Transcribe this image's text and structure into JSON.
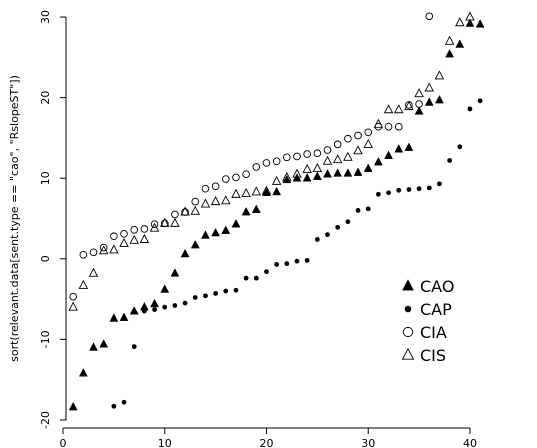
{
  "chart_data": {
    "type": "scatter",
    "title": "",
    "xlabel": "",
    "ylabel": "sort(relevant.data[sent.type == \"cao\", \"RslopeST\"])",
    "xlim": [
      0,
      46
    ],
    "ylim": [
      -21,
      31
    ],
    "xticks": [
      0,
      10,
      20,
      30,
      40
    ],
    "yticks": [
      -20,
      -10,
      0,
      10,
      20,
      30
    ],
    "grid": false,
    "legend_position": "lower-right",
    "series": [
      {
        "name": "CAO",
        "marker": "filled-triangle",
        "x": [
          1,
          2,
          3,
          4,
          5,
          6,
          7,
          8,
          9,
          10,
          11,
          12,
          13,
          14,
          15,
          16,
          17,
          18,
          19,
          20,
          21,
          22,
          23,
          24,
          25,
          26,
          27,
          28,
          29,
          30,
          31,
          32,
          33,
          34,
          35,
          36,
          37,
          38,
          39,
          40,
          41
        ],
        "y": [
          -18.4,
          -14.2,
          -11.0,
          -10.6,
          -7.4,
          -7.3,
          -6.5,
          -6.0,
          -5.6,
          -3.8,
          -1.8,
          0.6,
          1.7,
          2.9,
          3.2,
          3.5,
          4.3,
          5.8,
          6.1,
          8.2,
          8.3,
          9.8,
          10.0,
          10.0,
          10.2,
          10.5,
          10.6,
          10.6,
          10.7,
          11.2,
          12.0,
          12.8,
          13.6,
          13.8,
          18.3,
          19.4,
          19.7,
          25.4,
          26.6,
          29.2,
          29.1
        ]
      },
      {
        "name": "CAP",
        "marker": "filled-circle",
        "x": [
          5,
          6,
          7,
          8,
          9,
          10,
          11,
          12,
          13,
          14,
          15,
          16,
          17,
          18,
          19,
          20,
          21,
          22,
          23,
          24,
          25,
          26,
          27,
          28,
          29,
          30,
          31,
          32,
          33,
          34,
          35,
          36,
          37,
          38,
          39,
          40,
          41
        ],
        "y": [
          -18.3,
          -17.8,
          -10.9,
          -6.5,
          -6.3,
          -6.0,
          -5.8,
          -5.5,
          -4.8,
          -4.6,
          -4.3,
          -4.0,
          -3.9,
          -2.4,
          -2.4,
          -1.6,
          -0.7,
          -0.6,
          -0.3,
          -0.2,
          2.4,
          3.0,
          3.9,
          4.6,
          6.0,
          6.2,
          8.0,
          8.2,
          8.5,
          8.6,
          8.7,
          8.8,
          9.3,
          12.2,
          13.9,
          18.6,
          19.6
        ]
      },
      {
        "name": "CIA",
        "marker": "open-circle",
        "x": [
          1,
          2,
          3,
          4,
          5,
          6,
          7,
          8,
          9,
          10,
          11,
          12,
          13,
          14,
          15,
          16,
          17,
          18,
          19,
          20,
          21,
          22,
          23,
          24,
          25,
          26,
          27,
          28,
          29,
          30,
          31,
          32,
          33,
          34,
          35,
          36
        ],
        "y": [
          -4.7,
          0.5,
          0.8,
          1.4,
          2.8,
          3.1,
          3.6,
          3.7,
          4.3,
          4.4,
          5.5,
          5.8,
          7.1,
          8.7,
          9.0,
          9.9,
          10.1,
          10.5,
          11.4,
          11.9,
          12.1,
          12.6,
          12.7,
          13.0,
          13.1,
          13.5,
          14.2,
          14.9,
          15.3,
          15.7,
          16.4,
          16.4,
          16.4,
          19.1,
          19.2,
          30.1
        ]
      },
      {
        "name": "CIS",
        "marker": "open-triangle",
        "x": [
          1,
          2,
          3,
          4,
          5,
          6,
          7,
          8,
          9,
          10,
          11,
          12,
          13,
          14,
          15,
          16,
          17,
          18,
          19,
          20,
          21,
          22,
          23,
          24,
          25,
          26,
          27,
          28,
          29,
          30,
          31,
          32,
          33,
          34,
          35,
          36,
          37,
          38,
          39,
          40
        ],
        "y": [
          -6.0,
          -3.3,
          -1.8,
          1.0,
          1.1,
          1.9,
          2.3,
          2.4,
          3.8,
          4.4,
          4.4,
          5.8,
          5.9,
          6.8,
          7.1,
          7.2,
          8.0,
          8.1,
          8.3,
          8.4,
          9.6,
          10.1,
          10.5,
          11.1,
          11.2,
          12.1,
          12.3,
          12.6,
          13.4,
          14.2,
          16.7,
          18.5,
          18.5,
          18.9,
          20.5,
          21.2,
          22.7,
          27.0,
          29.3,
          30.0
        ]
      }
    ]
  }
}
